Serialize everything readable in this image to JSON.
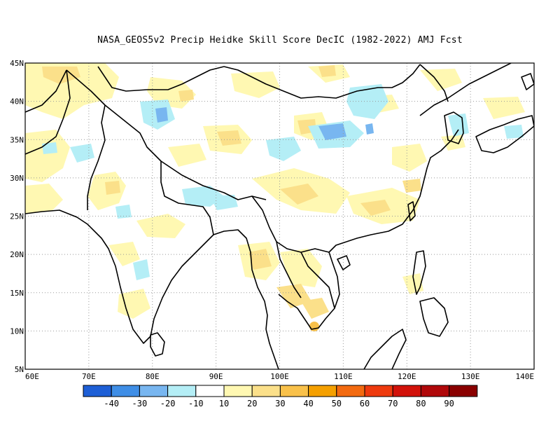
{
  "title": "NASA_GEOS5v2 Precip Heidke Skill Score DecIC (1982-2022) AMJ Fcst",
  "lat_labels": [
    "45N",
    "40N",
    "35N",
    "30N",
    "25N",
    "20N",
    "15N",
    "10N",
    "5N"
  ],
  "lon_labels": [
    "60E",
    "70E",
    "80E",
    "90E",
    "100E",
    "110E",
    "120E",
    "130E",
    "140E"
  ],
  "colorbar": {
    "colors": [
      "#1e5fd6",
      "#3f8ee6",
      "#78b6f0",
      "#b4eef6",
      "#ffffff",
      "#fff8b2",
      "#fbe08a",
      "#f9c14a",
      "#f5a000",
      "#f36a10",
      "#ee3a0e",
      "#d2120a",
      "#b0080a",
      "#8a0000"
    ],
    "labels": [
      "-40",
      "-30",
      "-20",
      "-10",
      "10",
      "20",
      "30",
      "40",
      "50",
      "60",
      "70",
      "80",
      "90"
    ]
  },
  "legend_colors": {
    "land_border": "#000000",
    "grid": "#999999"
  }
}
